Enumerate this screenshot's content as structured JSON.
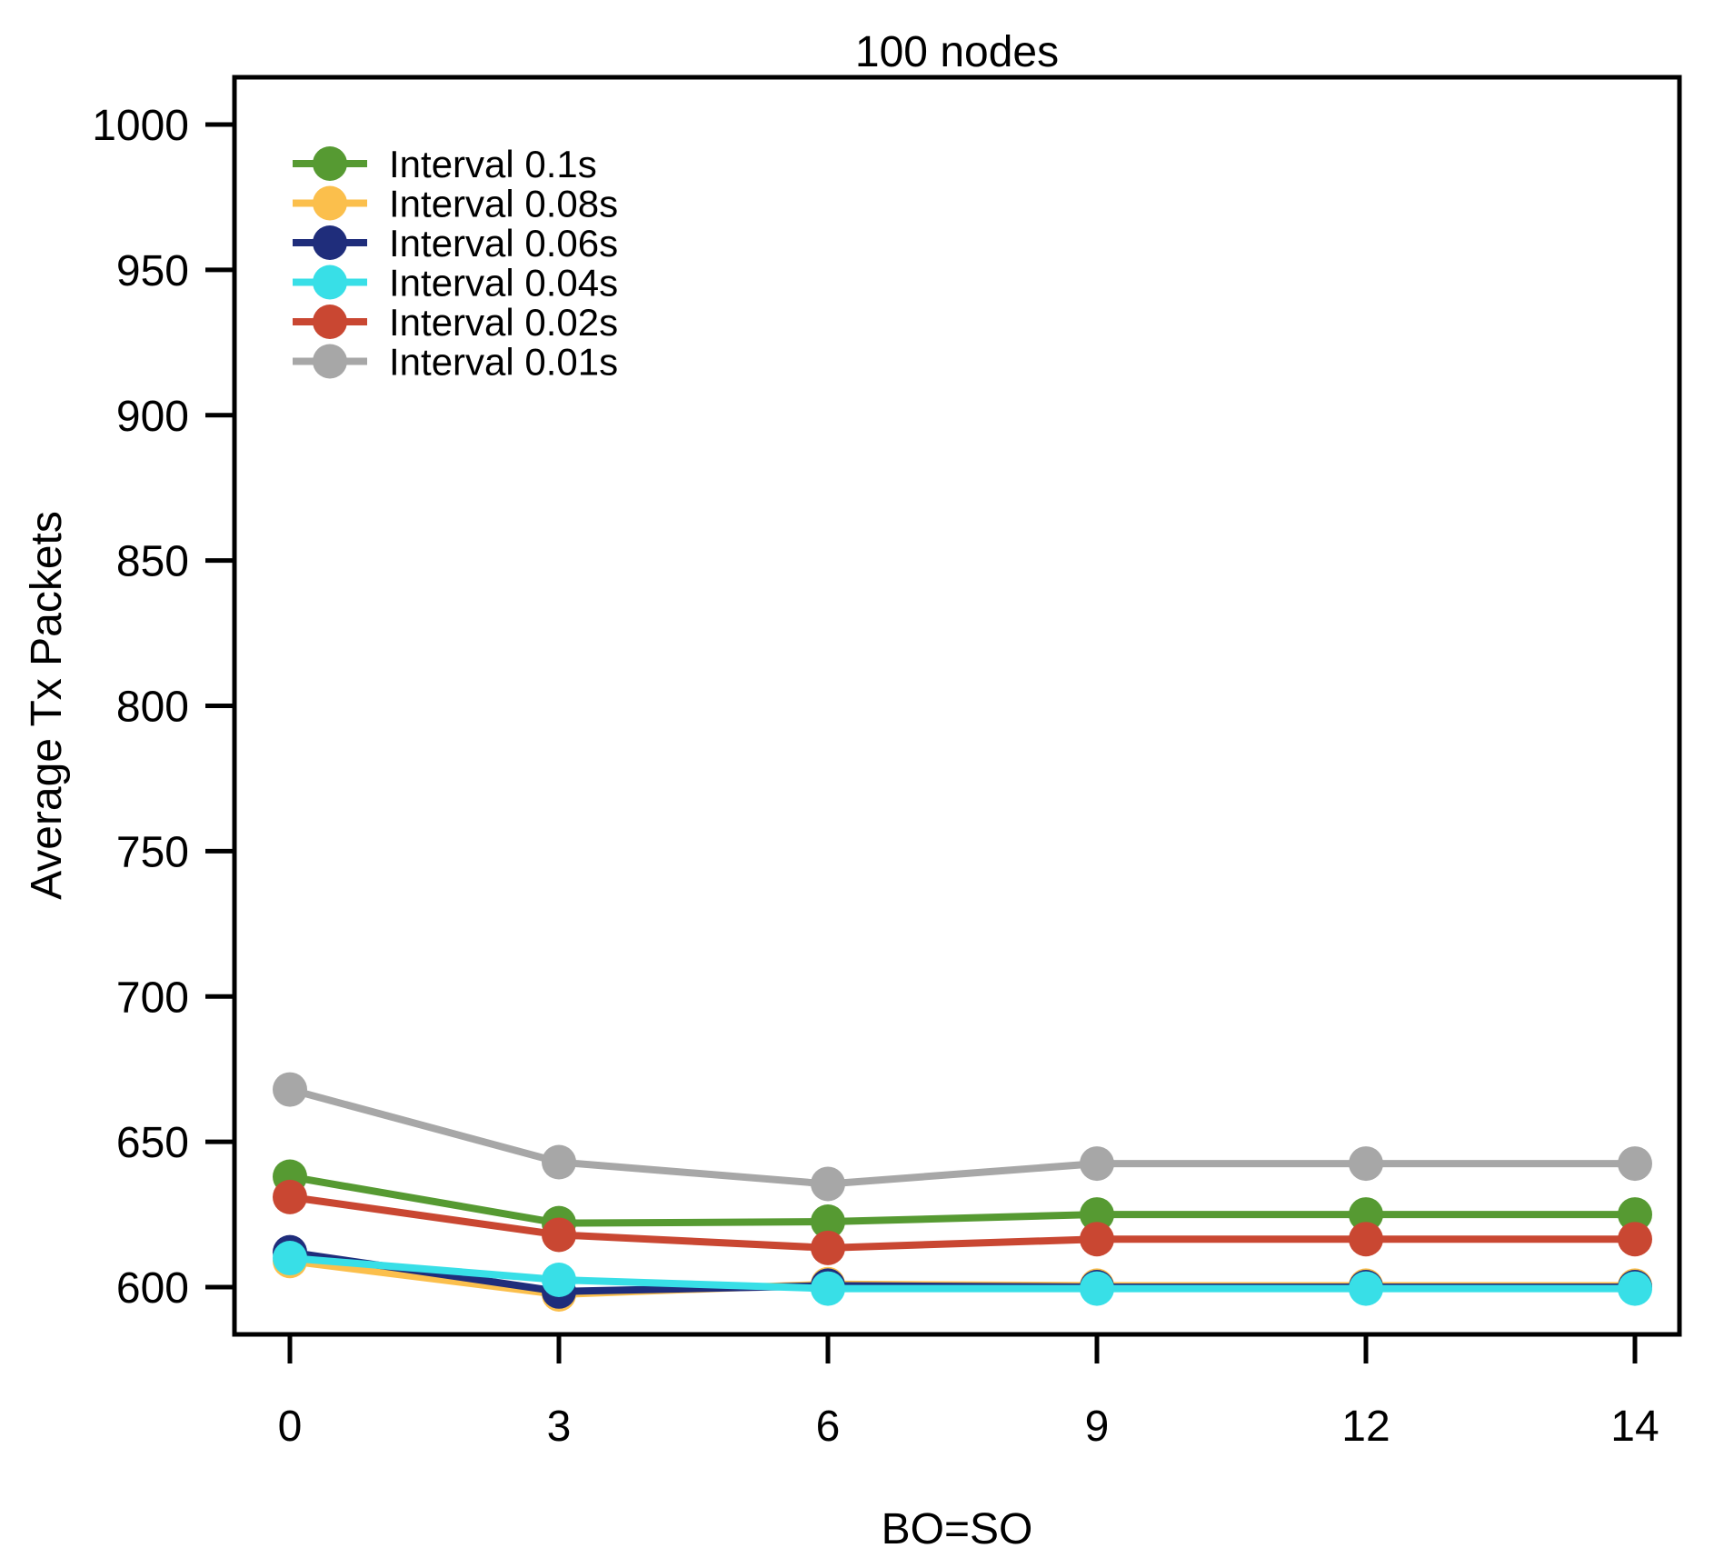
{
  "page": {
    "background": "#FFFFFF"
  },
  "chart_data": {
    "type": "line",
    "title": "100 nodes",
    "xlabel": "BO=SO",
    "ylabel": "Average Tx Packets",
    "categories": [
      "0",
      "3",
      "6",
      "9",
      "12",
      "14"
    ],
    "x_axis_note": "category ticks equally spaced",
    "ylim": [
      600,
      1000
    ],
    "yticks": [
      600,
      650,
      700,
      750,
      800,
      850,
      900,
      950,
      1000
    ],
    "grid": false,
    "legend_position": "top-left",
    "series": [
      {
        "name": "Interval 0.1s",
        "color": "#569A32",
        "values": [
          638,
          622,
          622.5,
          625,
          625,
          625
        ]
      },
      {
        "name": "Interval 0.08s",
        "color": "#FBBF4C",
        "values": [
          609,
          597.5,
          601,
          600.5,
          600.5,
          600.5
        ]
      },
      {
        "name": "Interval 0.06s",
        "color": "#1F2D7B",
        "values": [
          612,
          598.5,
          600.5,
          600,
          600,
          600
        ]
      },
      {
        "name": "Interval 0.04s",
        "color": "#38DFE7",
        "values": [
          610,
          602.5,
          599.5,
          599.5,
          599.5,
          599.5
        ]
      },
      {
        "name": "Interval 0.02s",
        "color": "#C94732",
        "values": [
          631,
          618,
          613.5,
          616.5,
          616.5,
          616.5
        ]
      },
      {
        "name": "Interval 0.01s",
        "color": "#A7A7A7",
        "values": [
          668,
          643,
          635.5,
          642.5,
          642.5,
          642.5
        ]
      }
    ]
  }
}
